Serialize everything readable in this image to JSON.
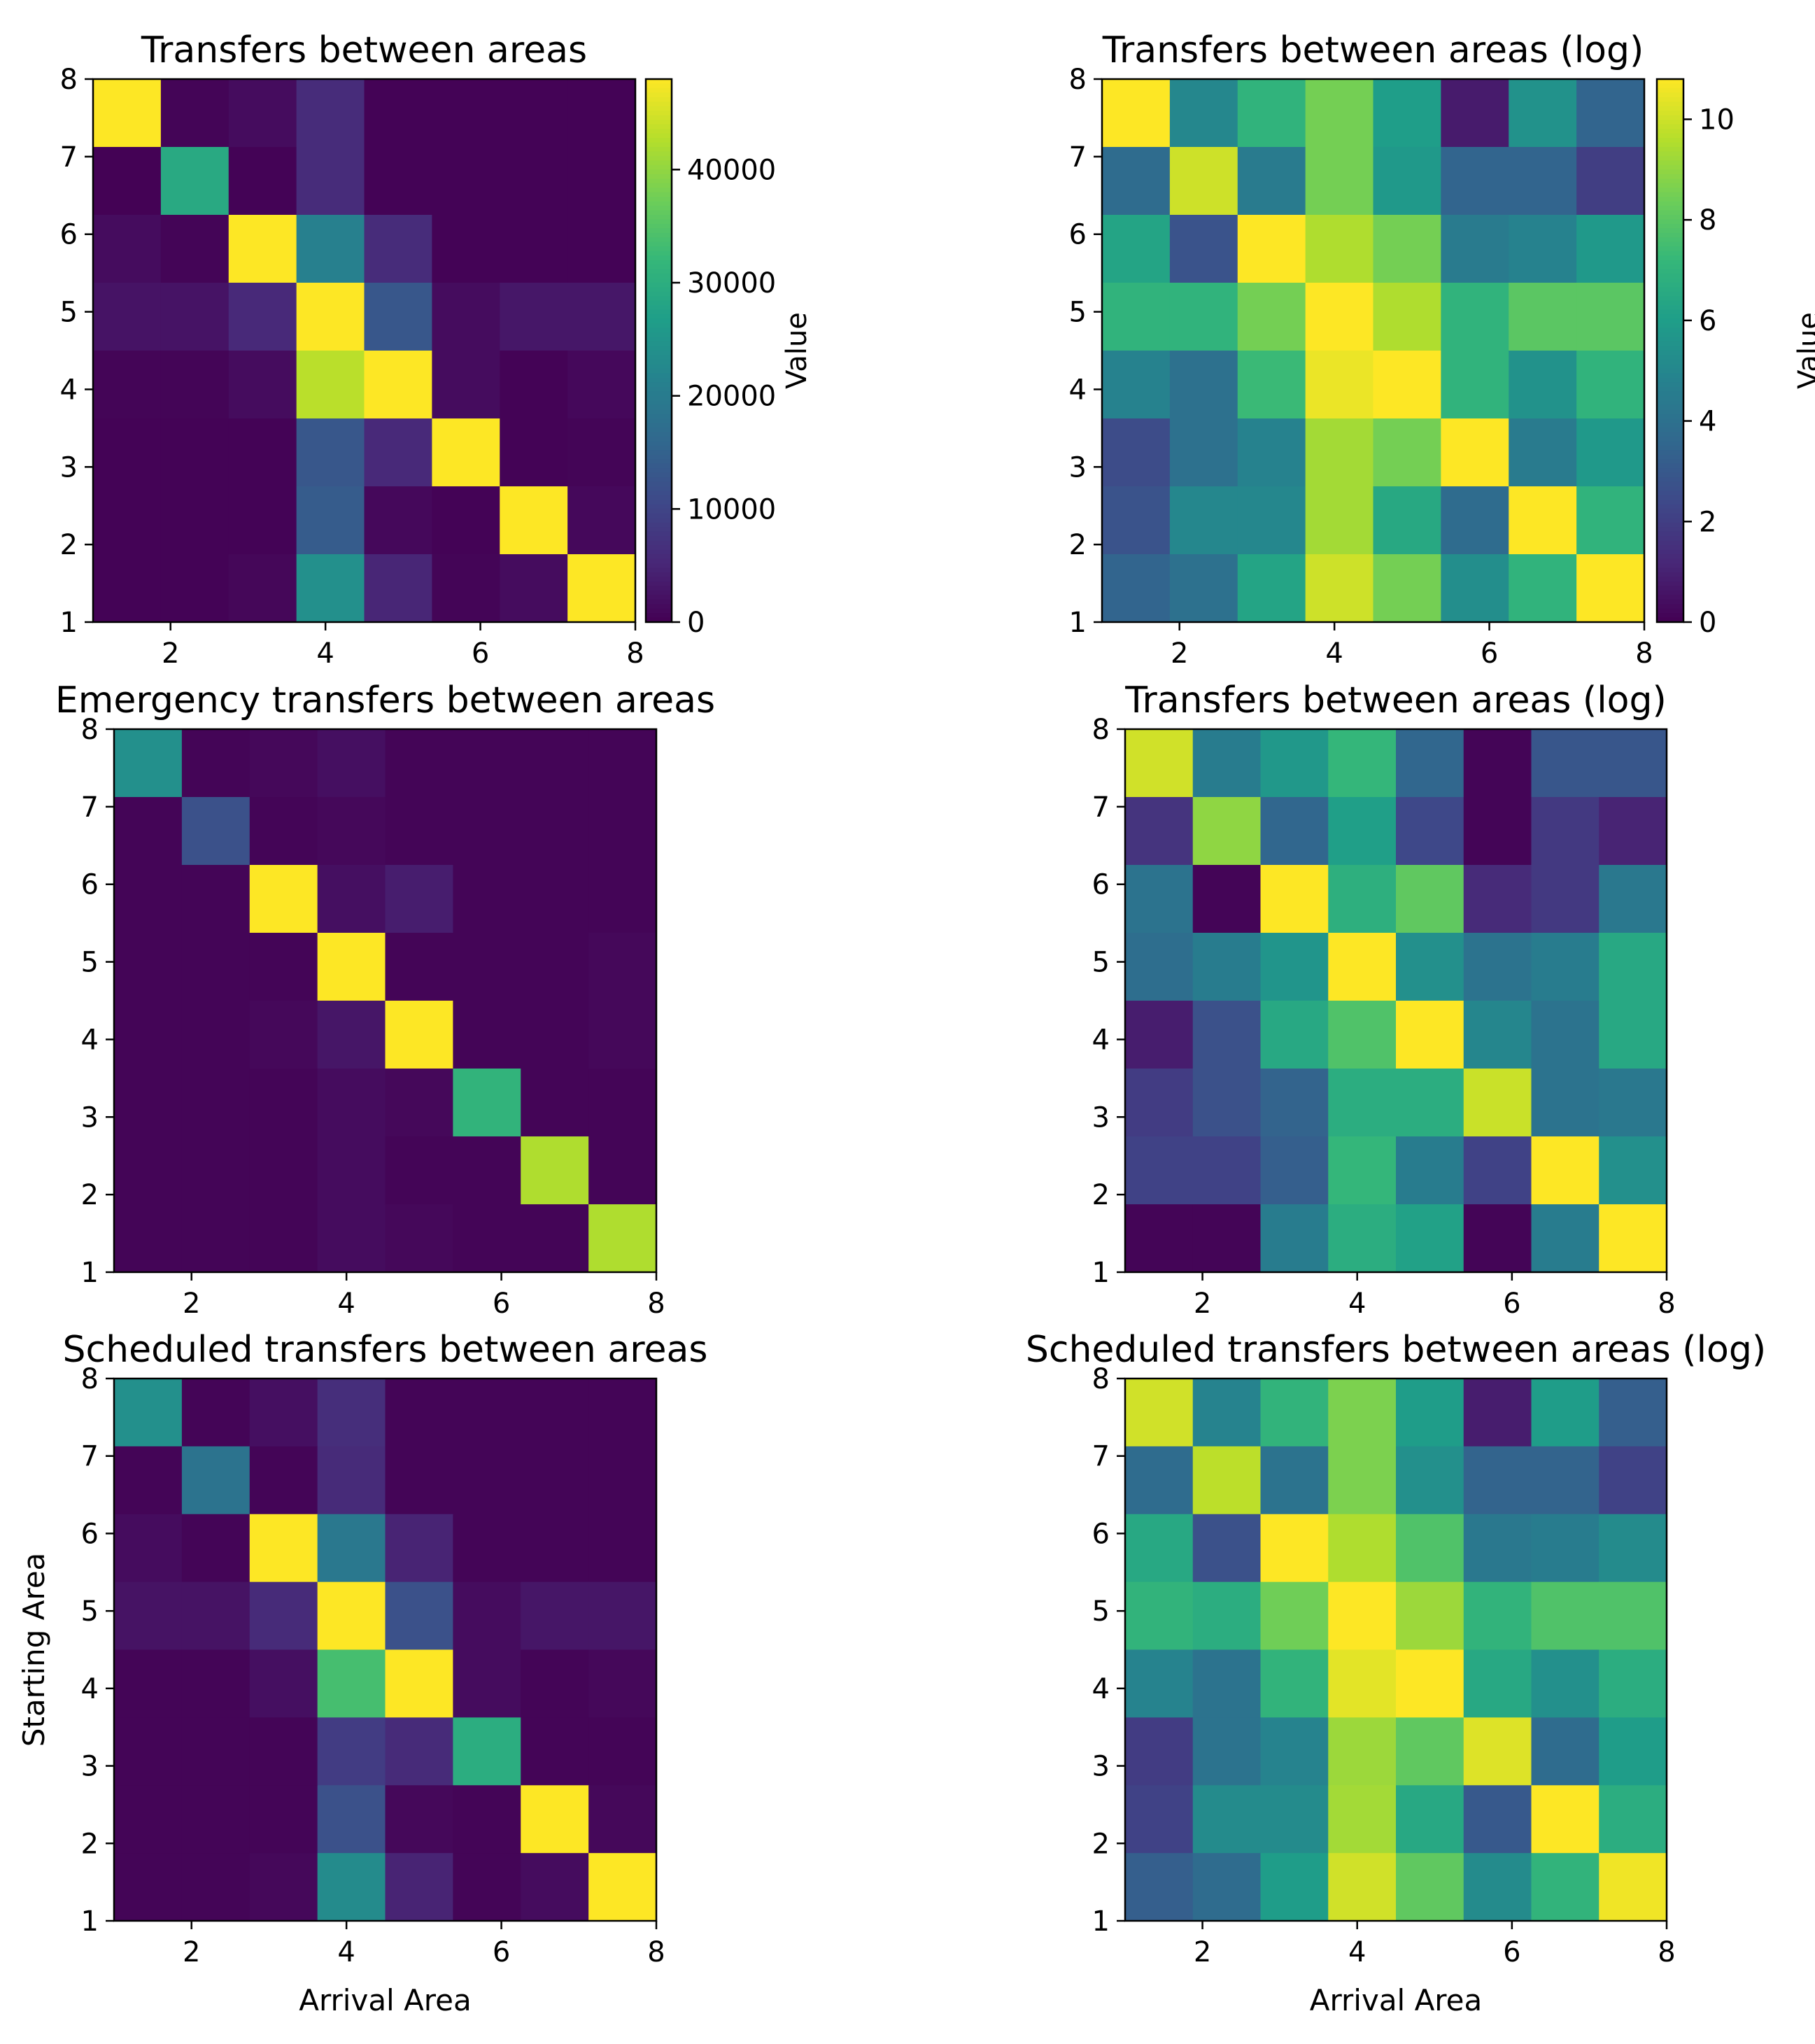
{
  "figure": {
    "description_free": true
  },
  "colormap": {
    "name": "viridis",
    "stops": [
      "#440154",
      "#482878",
      "#3e4989",
      "#31688e",
      "#26828e",
      "#1f9e89",
      "#35b779",
      "#6ece58",
      "#b5de2b",
      "#fde725"
    ]
  },
  "chart_data": [
    {
      "type": "heatmap",
      "title": "Transfers between areas",
      "xlabel": "",
      "ylabel": "",
      "x_ticks": [
        "2",
        "4",
        "6",
        "8"
      ],
      "y_ticks": [
        "1",
        "2",
        "3",
        "4",
        "5",
        "6",
        "7",
        "8"
      ],
      "xlim": [
        1,
        8
      ],
      "ylim": [
        1,
        8
      ],
      "rows_top_to_bottom": [
        [
          48000,
          500,
          1500,
          6000,
          300,
          300,
          300,
          300
        ],
        [
          200,
          29000,
          300,
          6000,
          300,
          300,
          300,
          300
        ],
        [
          1500,
          500,
          48000,
          21000,
          6000,
          300,
          300,
          300
        ],
        [
          2500,
          2500,
          5500,
          48000,
          13000,
          1500,
          3000,
          3000
        ],
        [
          500,
          500,
          1500,
          43000,
          48000,
          1500,
          300,
          1000
        ],
        [
          300,
          300,
          300,
          13000,
          5500,
          48000,
          300,
          500
        ],
        [
          300,
          300,
          300,
          14000,
          1000,
          300,
          48000,
          1000
        ],
        [
          300,
          300,
          800,
          24000,
          5000,
          500,
          1500,
          48000
        ]
      ],
      "vmin": 0,
      "vmax": 48000,
      "colorbar": {
        "label": "Value",
        "ticks": [
          "0",
          "10000",
          "20000",
          "30000",
          "40000"
        ],
        "tick_values": [
          0,
          10000,
          20000,
          30000,
          40000
        ]
      }
    },
    {
      "type": "heatmap",
      "title": "Transfers between areas (log)",
      "xlabel": "",
      "ylabel": "",
      "x_ticks": [
        "2",
        "4",
        "6",
        "8"
      ],
      "y_ticks": [
        "1",
        "2",
        "3",
        "4",
        "5",
        "6",
        "7",
        "8"
      ],
      "xlim": [
        1,
        8
      ],
      "ylim": [
        1,
        8
      ],
      "rows_top_to_bottom": [
        [
          10.8,
          5.0,
          7.0,
          8.5,
          6.0,
          0.8,
          5.5,
          3.5
        ],
        [
          3.8,
          10.0,
          4.5,
          8.5,
          5.8,
          3.5,
          3.5,
          2.0
        ],
        [
          6.3,
          2.8,
          10.8,
          9.5,
          8.5,
          4.5,
          4.8,
          5.8
        ],
        [
          7.0,
          7.0,
          8.5,
          10.8,
          9.5,
          7.0,
          8.0,
          8.0
        ],
        [
          4.8,
          4.0,
          7.3,
          10.5,
          10.8,
          7.0,
          5.5,
          7.0
        ],
        [
          2.5,
          4.0,
          4.8,
          9.3,
          8.5,
          10.8,
          4.5,
          5.8
        ],
        [
          2.8,
          5.0,
          5.0,
          9.3,
          6.5,
          3.8,
          10.8,
          7.0
        ],
        [
          3.5,
          4.0,
          6.3,
          10.0,
          8.5,
          5.3,
          7.0,
          10.8
        ]
      ],
      "vmin": 0,
      "vmax": 10.8,
      "colorbar": {
        "label": "Value",
        "ticks": [
          "0",
          "2",
          "4",
          "6",
          "8",
          "10"
        ],
        "tick_values": [
          0,
          2,
          4,
          6,
          8,
          10
        ]
      }
    },
    {
      "type": "heatmap",
      "title": "Emergency transfers between areas",
      "xlabel": "",
      "ylabel": "",
      "x_ticks": [
        "2",
        "4",
        "6",
        "8"
      ],
      "y_ticks": [
        "1",
        "2",
        "3",
        "4",
        "5",
        "6",
        "7",
        "8"
      ],
      "xlim": [
        1,
        8
      ],
      "ylim": [
        1,
        8
      ],
      "rows_top_to_bottom": [
        [
          0.5,
          0.01,
          0.02,
          0.04,
          0.01,
          0.01,
          0.01,
          0.01
        ],
        [
          0.01,
          0.25,
          0.01,
          0.02,
          0.01,
          0.01,
          0.01,
          0.01
        ],
        [
          0.01,
          0.01,
          1.0,
          0.04,
          0.08,
          0.01,
          0.01,
          0.01
        ],
        [
          0.01,
          0.01,
          0.01,
          1.0,
          0.01,
          0.01,
          0.01,
          0.02
        ],
        [
          0.01,
          0.01,
          0.02,
          0.06,
          1.0,
          0.01,
          0.01,
          0.02
        ],
        [
          0.01,
          0.01,
          0.01,
          0.03,
          0.02,
          0.65,
          0.01,
          0.01
        ],
        [
          0.01,
          0.01,
          0.01,
          0.03,
          0.01,
          0.01,
          0.88,
          0.01
        ],
        [
          0.01,
          0.01,
          0.01,
          0.03,
          0.02,
          0.01,
          0.01,
          0.88
        ]
      ],
      "vmin": 0,
      "vmax": 1.0
    },
    {
      "type": "heatmap",
      "title": "Transfers between areas (log)",
      "xlabel": "",
      "ylabel": "",
      "x_ticks": [
        "2",
        "4",
        "6",
        "8"
      ],
      "y_ticks": [
        "1",
        "2",
        "3",
        "4",
        "5",
        "6",
        "7",
        "8"
      ],
      "xlim": [
        1,
        8
      ],
      "ylim": [
        1,
        8
      ],
      "rows_top_to_bottom": [
        [
          0.93,
          0.42,
          0.53,
          0.66,
          0.33,
          0.01,
          0.27,
          0.27
        ],
        [
          0.15,
          0.83,
          0.33,
          0.56,
          0.22,
          0.01,
          0.17,
          0.1
        ],
        [
          0.38,
          0.01,
          1.0,
          0.63,
          0.75,
          0.12,
          0.17,
          0.4
        ],
        [
          0.36,
          0.42,
          0.52,
          1.0,
          0.5,
          0.38,
          0.42,
          0.6
        ],
        [
          0.08,
          0.25,
          0.6,
          0.72,
          1.0,
          0.46,
          0.38,
          0.6
        ],
        [
          0.18,
          0.25,
          0.32,
          0.62,
          0.62,
          0.92,
          0.38,
          0.4
        ],
        [
          0.2,
          0.2,
          0.3,
          0.66,
          0.42,
          0.2,
          1.0,
          0.5
        ],
        [
          0.01,
          0.01,
          0.42,
          0.62,
          0.57,
          0.01,
          0.42,
          1.0
        ]
      ],
      "vmin": 0,
      "vmax": 1.0
    },
    {
      "type": "heatmap",
      "title": "Scheduled transfers between areas",
      "xlabel": "Arrival Area",
      "ylabel": "Starting Area",
      "x_ticks": [
        "2",
        "4",
        "6",
        "8"
      ],
      "y_ticks": [
        "1",
        "2",
        "3",
        "4",
        "5",
        "6",
        "7",
        "8"
      ],
      "xlim": [
        1,
        8
      ],
      "ylim": [
        1,
        8
      ],
      "rows_top_to_bottom": [
        [
          0.5,
          0.01,
          0.04,
          0.13,
          0.01,
          0.01,
          0.01,
          0.01
        ],
        [
          0.01,
          0.38,
          0.01,
          0.12,
          0.01,
          0.01,
          0.01,
          0.01
        ],
        [
          0.03,
          0.01,
          1.0,
          0.4,
          0.1,
          0.01,
          0.01,
          0.01
        ],
        [
          0.05,
          0.05,
          0.12,
          1.0,
          0.25,
          0.03,
          0.06,
          0.06
        ],
        [
          0.01,
          0.01,
          0.04,
          0.7,
          1.0,
          0.03,
          0.01,
          0.02
        ],
        [
          0.01,
          0.01,
          0.01,
          0.18,
          0.12,
          0.62,
          0.01,
          0.01
        ],
        [
          0.01,
          0.01,
          0.01,
          0.25,
          0.02,
          0.01,
          1.0,
          0.02
        ],
        [
          0.01,
          0.01,
          0.02,
          0.48,
          0.1,
          0.01,
          0.03,
          1.0
        ]
      ],
      "vmin": 0,
      "vmax": 1.0
    },
    {
      "type": "heatmap",
      "title": "Scheduled transfers between areas (log)",
      "xlabel": "Arrival Area",
      "ylabel": "",
      "x_ticks": [
        "2",
        "4",
        "6",
        "8"
      ],
      "y_ticks": [
        "1",
        "2",
        "3",
        "4",
        "5",
        "6",
        "7",
        "8"
      ],
      "xlim": [
        1,
        8
      ],
      "ylim": [
        1,
        8
      ],
      "rows_top_to_bottom": [
        [
          0.93,
          0.45,
          0.65,
          0.8,
          0.55,
          0.08,
          0.55,
          0.3
        ],
        [
          0.35,
          0.9,
          0.38,
          0.8,
          0.5,
          0.32,
          0.32,
          0.2
        ],
        [
          0.6,
          0.25,
          1.0,
          0.88,
          0.72,
          0.4,
          0.42,
          0.48
        ],
        [
          0.65,
          0.62,
          0.78,
          1.0,
          0.85,
          0.65,
          0.72,
          0.72
        ],
        [
          0.45,
          0.38,
          0.65,
          0.96,
          1.0,
          0.6,
          0.5,
          0.62
        ],
        [
          0.18,
          0.38,
          0.45,
          0.85,
          0.75,
          0.95,
          0.35,
          0.55
        ],
        [
          0.2,
          0.48,
          0.48,
          0.86,
          0.6,
          0.28,
          1.0,
          0.62
        ],
        [
          0.3,
          0.35,
          0.55,
          0.93,
          0.75,
          0.48,
          0.65,
          0.98
        ]
      ],
      "vmin": 0,
      "vmax": 1.0
    }
  ]
}
